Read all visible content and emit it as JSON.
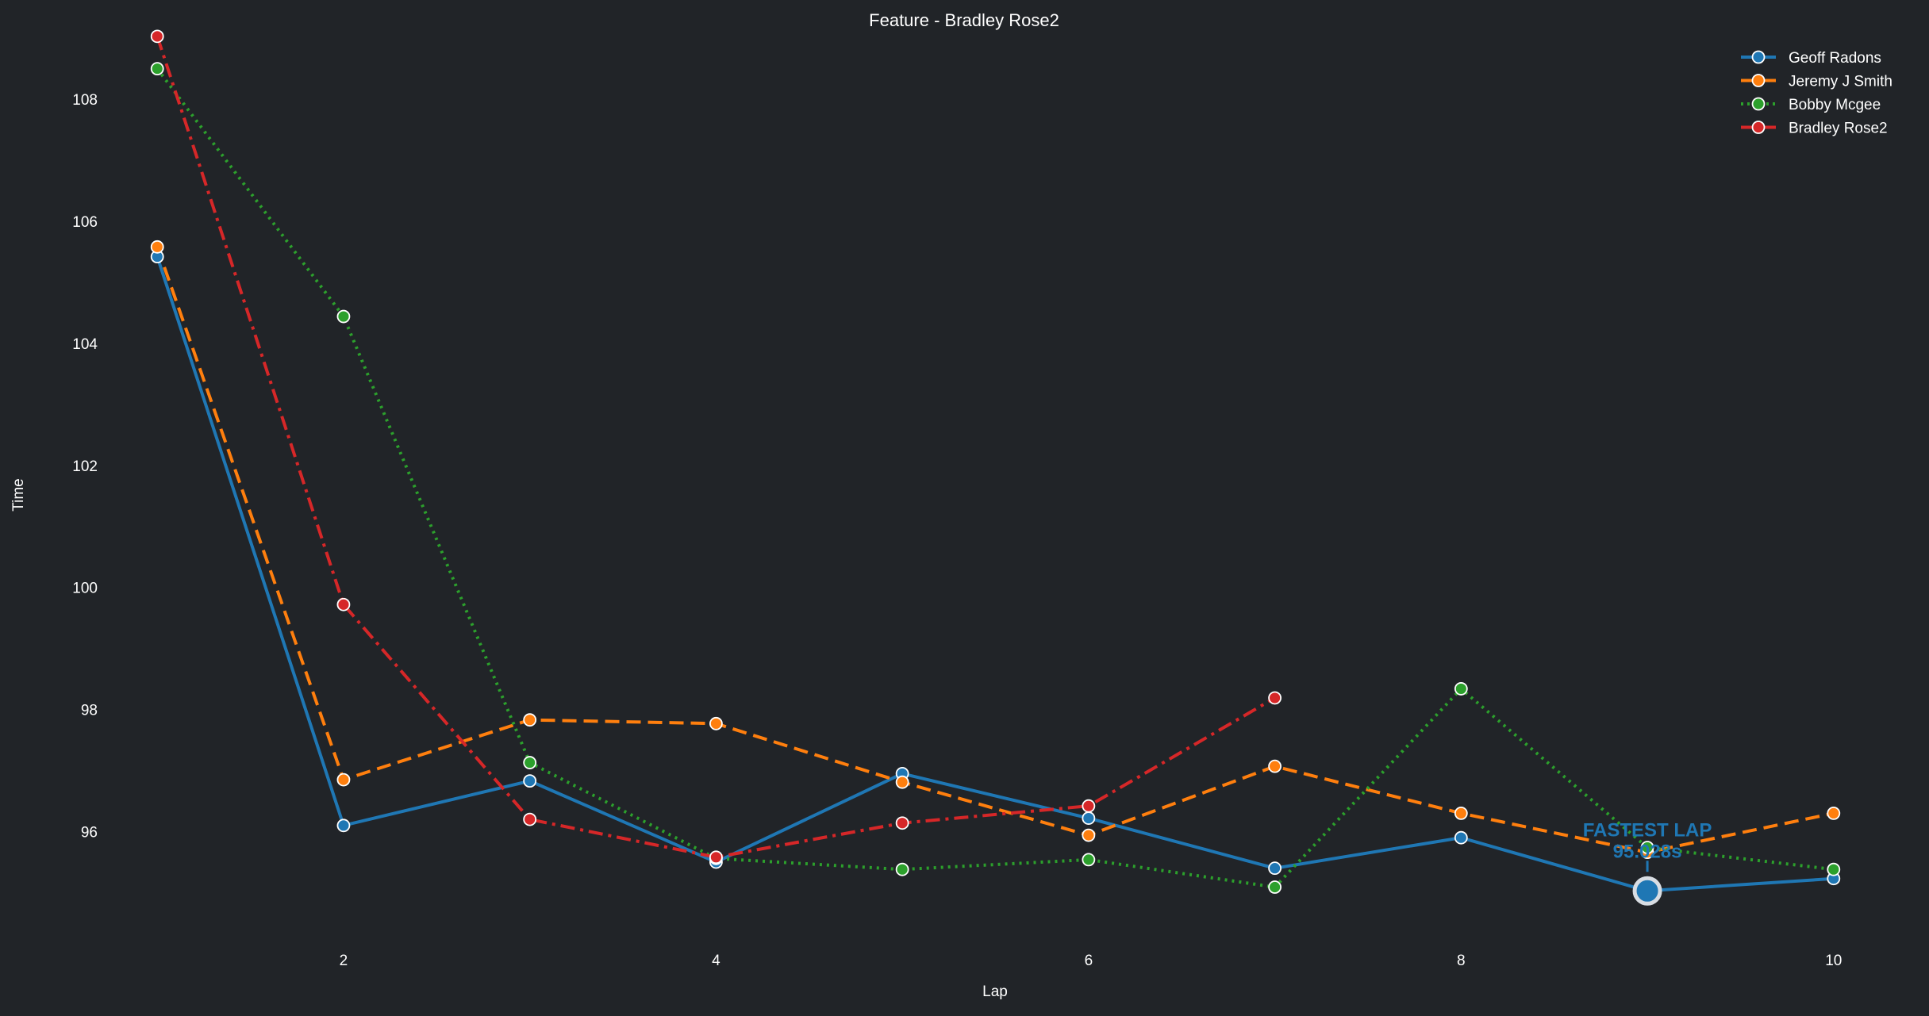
{
  "chart_data": {
    "type": "line",
    "title": "Feature - Bradley Rose2",
    "xlabel": "Lap",
    "ylabel": "Time",
    "xlim": [
      0.85,
      10.15
    ],
    "ylim": [
      94.2,
      109.6
    ],
    "xticks": [
      2,
      4,
      6,
      8,
      10
    ],
    "yticks": [
      96,
      98,
      100,
      102,
      104,
      106,
      108
    ],
    "grid": false,
    "legend": "top-right",
    "series": [
      {
        "name": "Geoff Radons",
        "color": "#1f77b4",
        "dash": "",
        "x": [
          1,
          2,
          3,
          4,
          5,
          6,
          7,
          8,
          9,
          10
        ],
        "values": [
          105.42,
          96.1,
          96.83,
          95.5,
          96.95,
          96.22,
          95.4,
          95.9,
          95.028,
          95.23
        ]
      },
      {
        "name": "Jeremy J Smith",
        "color": "#ff7f0e",
        "dash": "18,9",
        "x": [
          1,
          2,
          3,
          4,
          5,
          6,
          7,
          8,
          9,
          10
        ],
        "values": [
          105.58,
          96.85,
          97.83,
          97.77,
          96.81,
          95.94,
          97.07,
          96.3,
          95.66,
          96.3
        ]
      },
      {
        "name": "Bobby Mcgee",
        "color": "#2ca02c",
        "dash": "3,6",
        "x": [
          1,
          2,
          3,
          4,
          5,
          6,
          7,
          8,
          9,
          10
        ],
        "values": [
          108.5,
          104.44,
          97.13,
          95.56,
          95.38,
          95.54,
          95.09,
          98.34,
          95.74,
          95.38
        ]
      },
      {
        "name": "Bradley Rose2",
        "color": "#d62728",
        "dash": "18,7,4,7",
        "x": [
          1,
          2,
          3,
          4,
          5,
          6,
          7
        ],
        "values": [
          109.03,
          99.72,
          96.2,
          95.58,
          96.14,
          96.42,
          98.19
        ]
      }
    ],
    "annotation": {
      "title": "FASTEST LAP",
      "value": "95.028s",
      "x": 9,
      "y": 95.028,
      "series": "Geoff Radons"
    }
  }
}
